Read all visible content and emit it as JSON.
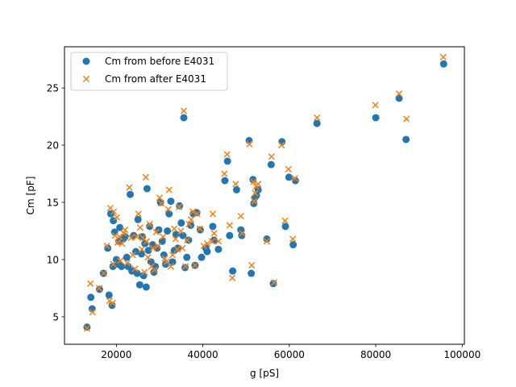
{
  "chart_data": {
    "type": "scatter",
    "title": "",
    "xlabel": "g [pS]",
    "ylabel": "Cm [pF]",
    "xlim": [
      8000,
      100500
    ],
    "ylim": [
      2.6,
      28.6
    ],
    "xticks": [
      20000,
      40000,
      60000,
      80000,
      100000
    ],
    "xtick_labels": [
      "20000",
      "40000",
      "60000",
      "80000",
      "100000"
    ],
    "yticks": [
      5,
      10,
      15,
      20,
      25
    ],
    "ytick_labels": [
      "5",
      "10",
      "15",
      "20",
      "25"
    ],
    "grid": false,
    "legend_position": "top-left",
    "series": [
      {
        "name": "Cm from before E4031",
        "marker": "circle",
        "color": "#1f77b4",
        "points": [
          [
            13200,
            4.1
          ],
          [
            14100,
            6.7
          ],
          [
            14400,
            5.7
          ],
          [
            16100,
            7.4
          ],
          [
            17000,
            8.8
          ],
          [
            18000,
            11.0
          ],
          [
            18300,
            6.9
          ],
          [
            18700,
            14.0
          ],
          [
            19000,
            6.0
          ],
          [
            19300,
            13.4
          ],
          [
            19600,
            12.4
          ],
          [
            19200,
            9.4
          ],
          [
            20000,
            10.0
          ],
          [
            20400,
            9.6
          ],
          [
            20600,
            11.6
          ],
          [
            20800,
            12.8
          ],
          [
            21200,
            9.4
          ],
          [
            21600,
            11.8
          ],
          [
            22000,
            12.0
          ],
          [
            22400,
            10.2
          ],
          [
            22700,
            9.4
          ],
          [
            23200,
            15.7
          ],
          [
            23600,
            9.0
          ],
          [
            24000,
            12.1
          ],
          [
            24500,
            10.7
          ],
          [
            24800,
            8.8
          ],
          [
            25000,
            13.5
          ],
          [
            25400,
            7.8
          ],
          [
            25800,
            10.5
          ],
          [
            26000,
            12.0
          ],
          [
            26300,
            8.6
          ],
          [
            26600,
            11.4
          ],
          [
            26900,
            7.6
          ],
          [
            27100,
            16.2
          ],
          [
            27400,
            10.8
          ],
          [
            27700,
            12.9
          ],
          [
            28000,
            9.8
          ],
          [
            28400,
            11.3
          ],
          [
            28700,
            8.9
          ],
          [
            29000,
            9.4
          ],
          [
            29400,
            11.0
          ],
          [
            29800,
            12.6
          ],
          [
            30200,
            15.0
          ],
          [
            30600,
            11.6
          ],
          [
            31000,
            10.4
          ],
          [
            31400,
            9.6
          ],
          [
            31800,
            12.5
          ],
          [
            32200,
            14.0
          ],
          [
            32600,
            15.1
          ],
          [
            33000,
            9.8
          ],
          [
            33400,
            10.8
          ],
          [
            33800,
            12.2
          ],
          [
            34200,
            11.0
          ],
          [
            34600,
            14.7
          ],
          [
            35000,
            13.2
          ],
          [
            35400,
            12.1
          ],
          [
            35600,
            22.4
          ],
          [
            35900,
            9.3
          ],
          [
            36300,
            10.2
          ],
          [
            36700,
            11.7
          ],
          [
            37200,
            13.0
          ],
          [
            37800,
            14.0
          ],
          [
            38200,
            9.5
          ],
          [
            38600,
            14.1
          ],
          [
            39400,
            12.6
          ],
          [
            39700,
            10.2
          ],
          [
            40700,
            11.0
          ],
          [
            41000,
            10.7
          ],
          [
            42300,
            12.9
          ],
          [
            42600,
            11.7
          ],
          [
            43600,
            10.9
          ],
          [
            45100,
            16.9
          ],
          [
            45700,
            18.6
          ],
          [
            46200,
            12.1
          ],
          [
            46900,
            9.0
          ],
          [
            47800,
            16.1
          ],
          [
            48800,
            12.6
          ],
          [
            49000,
            12.1
          ],
          [
            50700,
            20.4
          ],
          [
            51200,
            8.8
          ],
          [
            51600,
            17.0
          ],
          [
            51800,
            14.9
          ],
          [
            52000,
            15.4
          ],
          [
            52400,
            15.6
          ],
          [
            52800,
            16.1
          ],
          [
            54800,
            11.8
          ],
          [
            55800,
            18.3
          ],
          [
            56300,
            7.9
          ],
          [
            58300,
            20.3
          ],
          [
            59100,
            12.9
          ],
          [
            59900,
            17.2
          ],
          [
            60900,
            11.3
          ],
          [
            61400,
            16.9
          ],
          [
            66400,
            21.9
          ],
          [
            80000,
            22.4
          ],
          [
            85400,
            24.1
          ],
          [
            87000,
            20.5
          ],
          [
            95700,
            27.1
          ]
        ]
      },
      {
        "name": "Cm from after E4031",
        "marker": "x",
        "color": "#ff7f0e",
        "points": [
          [
            13200,
            4.0
          ],
          [
            14000,
            7.9
          ],
          [
            14500,
            5.4
          ],
          [
            16000,
            7.5
          ],
          [
            17100,
            8.8
          ],
          [
            17800,
            11.2
          ],
          [
            18400,
            6.4
          ],
          [
            18600,
            14.5
          ],
          [
            19100,
            6.2
          ],
          [
            19400,
            14.2
          ],
          [
            19700,
            12.1
          ],
          [
            19300,
            9.6
          ],
          [
            20100,
            13.7
          ],
          [
            20300,
            11.5
          ],
          [
            20700,
            12.0
          ],
          [
            20900,
            9.9
          ],
          [
            21300,
            11.4
          ],
          [
            21700,
            12.3
          ],
          [
            22000,
            12.6
          ],
          [
            22500,
            9.7
          ],
          [
            23000,
            16.3
          ],
          [
            23400,
            11.9
          ],
          [
            23800,
            10.4
          ],
          [
            24300,
            9.2
          ],
          [
            24700,
            12.0
          ],
          [
            25100,
            14.0
          ],
          [
            25500,
            12.8
          ],
          [
            25900,
            10.9
          ],
          [
            26100,
            11.9
          ],
          [
            26500,
            8.9
          ],
          [
            26800,
            17.2
          ],
          [
            27000,
            11.6
          ],
          [
            27300,
            10.2
          ],
          [
            27700,
            13.1
          ],
          [
            28100,
            9.4
          ],
          [
            28500,
            11.0
          ],
          [
            28800,
            9.1
          ],
          [
            29200,
            12.4
          ],
          [
            29600,
            11.2
          ],
          [
            30000,
            15.4
          ],
          [
            30400,
            14.9
          ],
          [
            30800,
            12.0
          ],
          [
            31200,
            10.1
          ],
          [
            31600,
            9.8
          ],
          [
            32000,
            14.4
          ],
          [
            32200,
            16.1
          ],
          [
            32600,
            9.4
          ],
          [
            33000,
            10.4
          ],
          [
            33400,
            12.7
          ],
          [
            33700,
            11.8
          ],
          [
            34100,
            10.9
          ],
          [
            34500,
            14.6
          ],
          [
            34900,
            12.5
          ],
          [
            35300,
            11.0
          ],
          [
            35600,
            23.0
          ],
          [
            36000,
            9.4
          ],
          [
            36400,
            11.7
          ],
          [
            36800,
            13.1
          ],
          [
            37300,
            13.5
          ],
          [
            37700,
            14.2
          ],
          [
            38200,
            9.5
          ],
          [
            38700,
            14.0
          ],
          [
            39300,
            12.7
          ],
          [
            40200,
            11.2
          ],
          [
            41000,
            11.4
          ],
          [
            42100,
            11.6
          ],
          [
            42300,
            14.0
          ],
          [
            42600,
            12.3
          ],
          [
            43600,
            11.6
          ],
          [
            45000,
            17.5
          ],
          [
            45600,
            19.2
          ],
          [
            46200,
            13.0
          ],
          [
            46800,
            8.4
          ],
          [
            47600,
            16.6
          ],
          [
            48800,
            13.8
          ],
          [
            49100,
            12.3
          ],
          [
            50800,
            20.1
          ],
          [
            51300,
            9.5
          ],
          [
            51700,
            16.8
          ],
          [
            51900,
            15.1
          ],
          [
            52100,
            15.8
          ],
          [
            52300,
            16.4
          ],
          [
            52800,
            16.6
          ],
          [
            54800,
            11.6
          ],
          [
            55900,
            19.0
          ],
          [
            56500,
            8.0
          ],
          [
            58200,
            20.0
          ],
          [
            59000,
            13.4
          ],
          [
            59800,
            17.9
          ],
          [
            60800,
            11.8
          ],
          [
            61300,
            17.1
          ],
          [
            66400,
            22.4
          ],
          [
            79900,
            23.5
          ],
          [
            85400,
            24.5
          ],
          [
            87100,
            22.3
          ],
          [
            95600,
            27.7
          ]
        ]
      }
    ]
  }
}
